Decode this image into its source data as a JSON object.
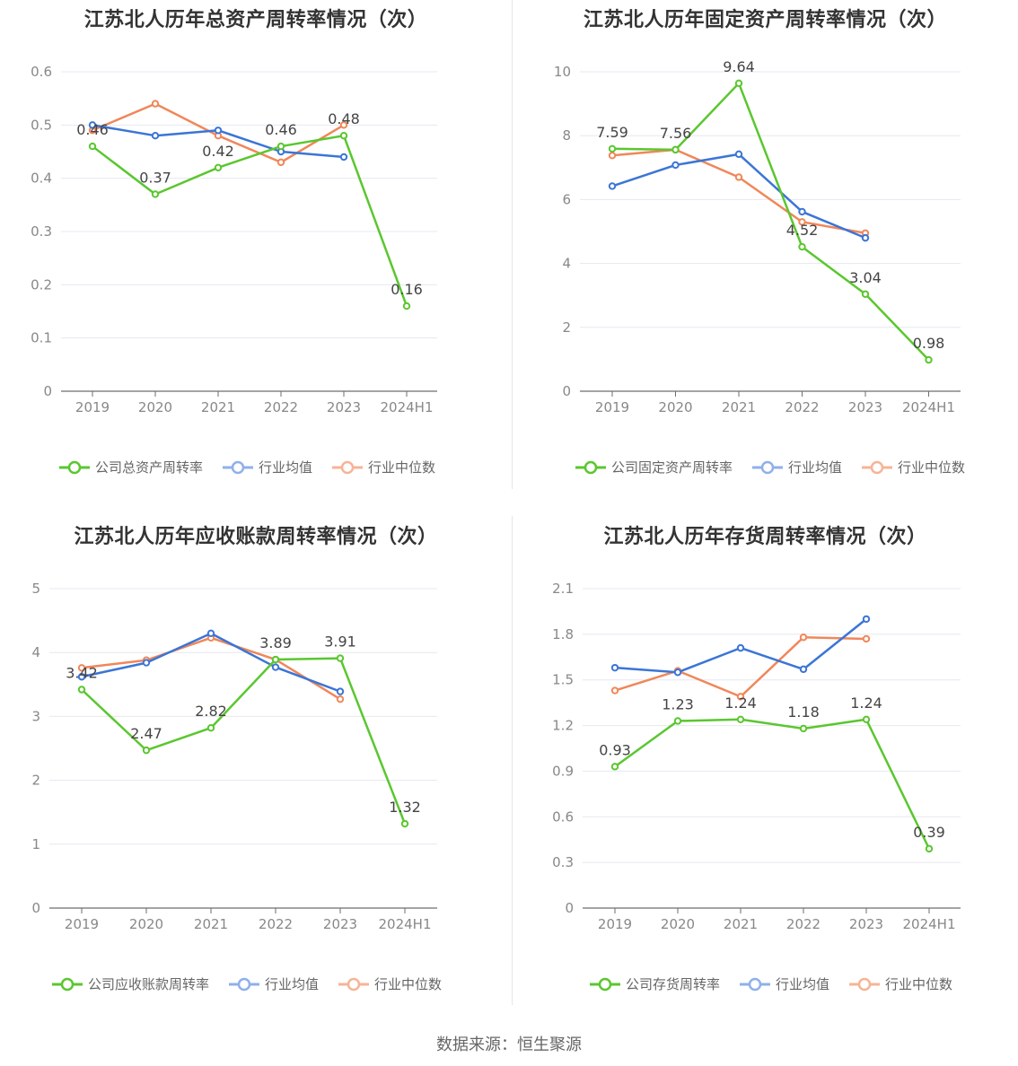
{
  "footer": {
    "source": "数据来源：恒生聚源"
  },
  "colors": {
    "company": "#5ac72f",
    "avg": "#3b75d6",
    "median": "#f08759",
    "grid": "#e6e8f0",
    "axis": "#6e6e6e",
    "text": "#888888"
  },
  "legend_labels": {
    "avg": "行业均值",
    "median": "行业中位数"
  },
  "chart_data": [
    {
      "type": "line",
      "title": "江苏北人历年总资产周转率情况（次）",
      "categories": [
        "2019",
        "2020",
        "2021",
        "2022",
        "2023",
        "2024H1"
      ],
      "ylim": [
        0,
        0.6
      ],
      "yticks": [
        "0",
        "0.1",
        "0.2",
        "0.3",
        "0.4",
        "0.5",
        "0.6"
      ],
      "grid": true,
      "legend_position": "bottom",
      "series": [
        {
          "key": "company",
          "name": "公司总资产周转率",
          "values": [
            0.46,
            0.37,
            0.42,
            0.46,
            0.48,
            0.16
          ],
          "labels": [
            "0.46",
            "0.37",
            "0.42",
            "0.46",
            "0.48",
            "0.16"
          ]
        },
        {
          "key": "avg",
          "name": "行业均值",
          "values": [
            0.5,
            0.48,
            0.49,
            0.45,
            0.44,
            null
          ]
        },
        {
          "key": "median",
          "name": "行业中位数",
          "values": [
            0.49,
            0.54,
            0.48,
            0.43,
            0.5,
            null
          ]
        }
      ]
    },
    {
      "type": "line",
      "title": "江苏北人历年固定资产周转率情况（次）",
      "categories": [
        "2019",
        "2020",
        "2021",
        "2022",
        "2023",
        "2024H1"
      ],
      "ylim": [
        0,
        10
      ],
      "yticks": [
        "0",
        "2",
        "4",
        "6",
        "8",
        "10"
      ],
      "grid": true,
      "legend_position": "bottom",
      "series": [
        {
          "key": "company",
          "name": "公司固定资产周转率",
          "values": [
            7.59,
            7.56,
            9.64,
            4.52,
            3.04,
            0.98
          ],
          "labels": [
            "7.59",
            "7.56",
            "9.64",
            "4.52",
            "3.04",
            "0.98"
          ]
        },
        {
          "key": "avg",
          "name": "行业均值",
          "values": [
            6.42,
            7.08,
            7.42,
            5.62,
            4.8,
            null
          ]
        },
        {
          "key": "median",
          "name": "行业中位数",
          "values": [
            7.38,
            7.56,
            6.7,
            5.3,
            4.95,
            null
          ]
        }
      ]
    },
    {
      "type": "line",
      "title": "江苏北人历年应收账款周转率情况（次）",
      "categories": [
        "2019",
        "2020",
        "2021",
        "2022",
        "2023",
        "2024H1"
      ],
      "ylim": [
        0,
        5
      ],
      "yticks": [
        "0",
        "1",
        "2",
        "3",
        "4",
        "5"
      ],
      "grid": true,
      "legend_position": "bottom",
      "series": [
        {
          "key": "company",
          "name": "公司应收账款周转率",
          "values": [
            3.42,
            2.47,
            2.82,
            3.89,
            3.91,
            1.32
          ],
          "labels": [
            "3.42",
            "2.47",
            "2.82",
            "3.89",
            "3.91",
            "1.32"
          ]
        },
        {
          "key": "avg",
          "name": "行业均值",
          "values": [
            3.62,
            3.84,
            4.3,
            3.77,
            3.39,
            null
          ]
        },
        {
          "key": "median",
          "name": "行业中位数",
          "values": [
            3.76,
            3.88,
            4.23,
            3.89,
            3.27,
            null
          ]
        }
      ]
    },
    {
      "type": "line",
      "title": "江苏北人历年存货周转率情况（次）",
      "categories": [
        "2019",
        "2020",
        "2021",
        "2022",
        "2023",
        "2024H1"
      ],
      "ylim": [
        0,
        2.1
      ],
      "yticks": [
        "0",
        "0.3",
        "0.6",
        "0.9",
        "1.2",
        "1.5",
        "1.8",
        "2.1"
      ],
      "grid": true,
      "legend_position": "bottom",
      "series": [
        {
          "key": "company",
          "name": "公司存货周转率",
          "values": [
            0.93,
            1.23,
            1.24,
            1.18,
            1.24,
            0.39
          ],
          "labels": [
            "0.93",
            "1.23",
            "1.24",
            "1.18",
            "1.24",
            "0.39"
          ]
        },
        {
          "key": "avg",
          "name": "行业均值",
          "values": [
            1.58,
            1.55,
            1.71,
            1.57,
            1.9,
            null
          ]
        },
        {
          "key": "median",
          "name": "行业中位数",
          "values": [
            1.43,
            1.56,
            1.39,
            1.78,
            1.77,
            null
          ]
        }
      ]
    }
  ]
}
